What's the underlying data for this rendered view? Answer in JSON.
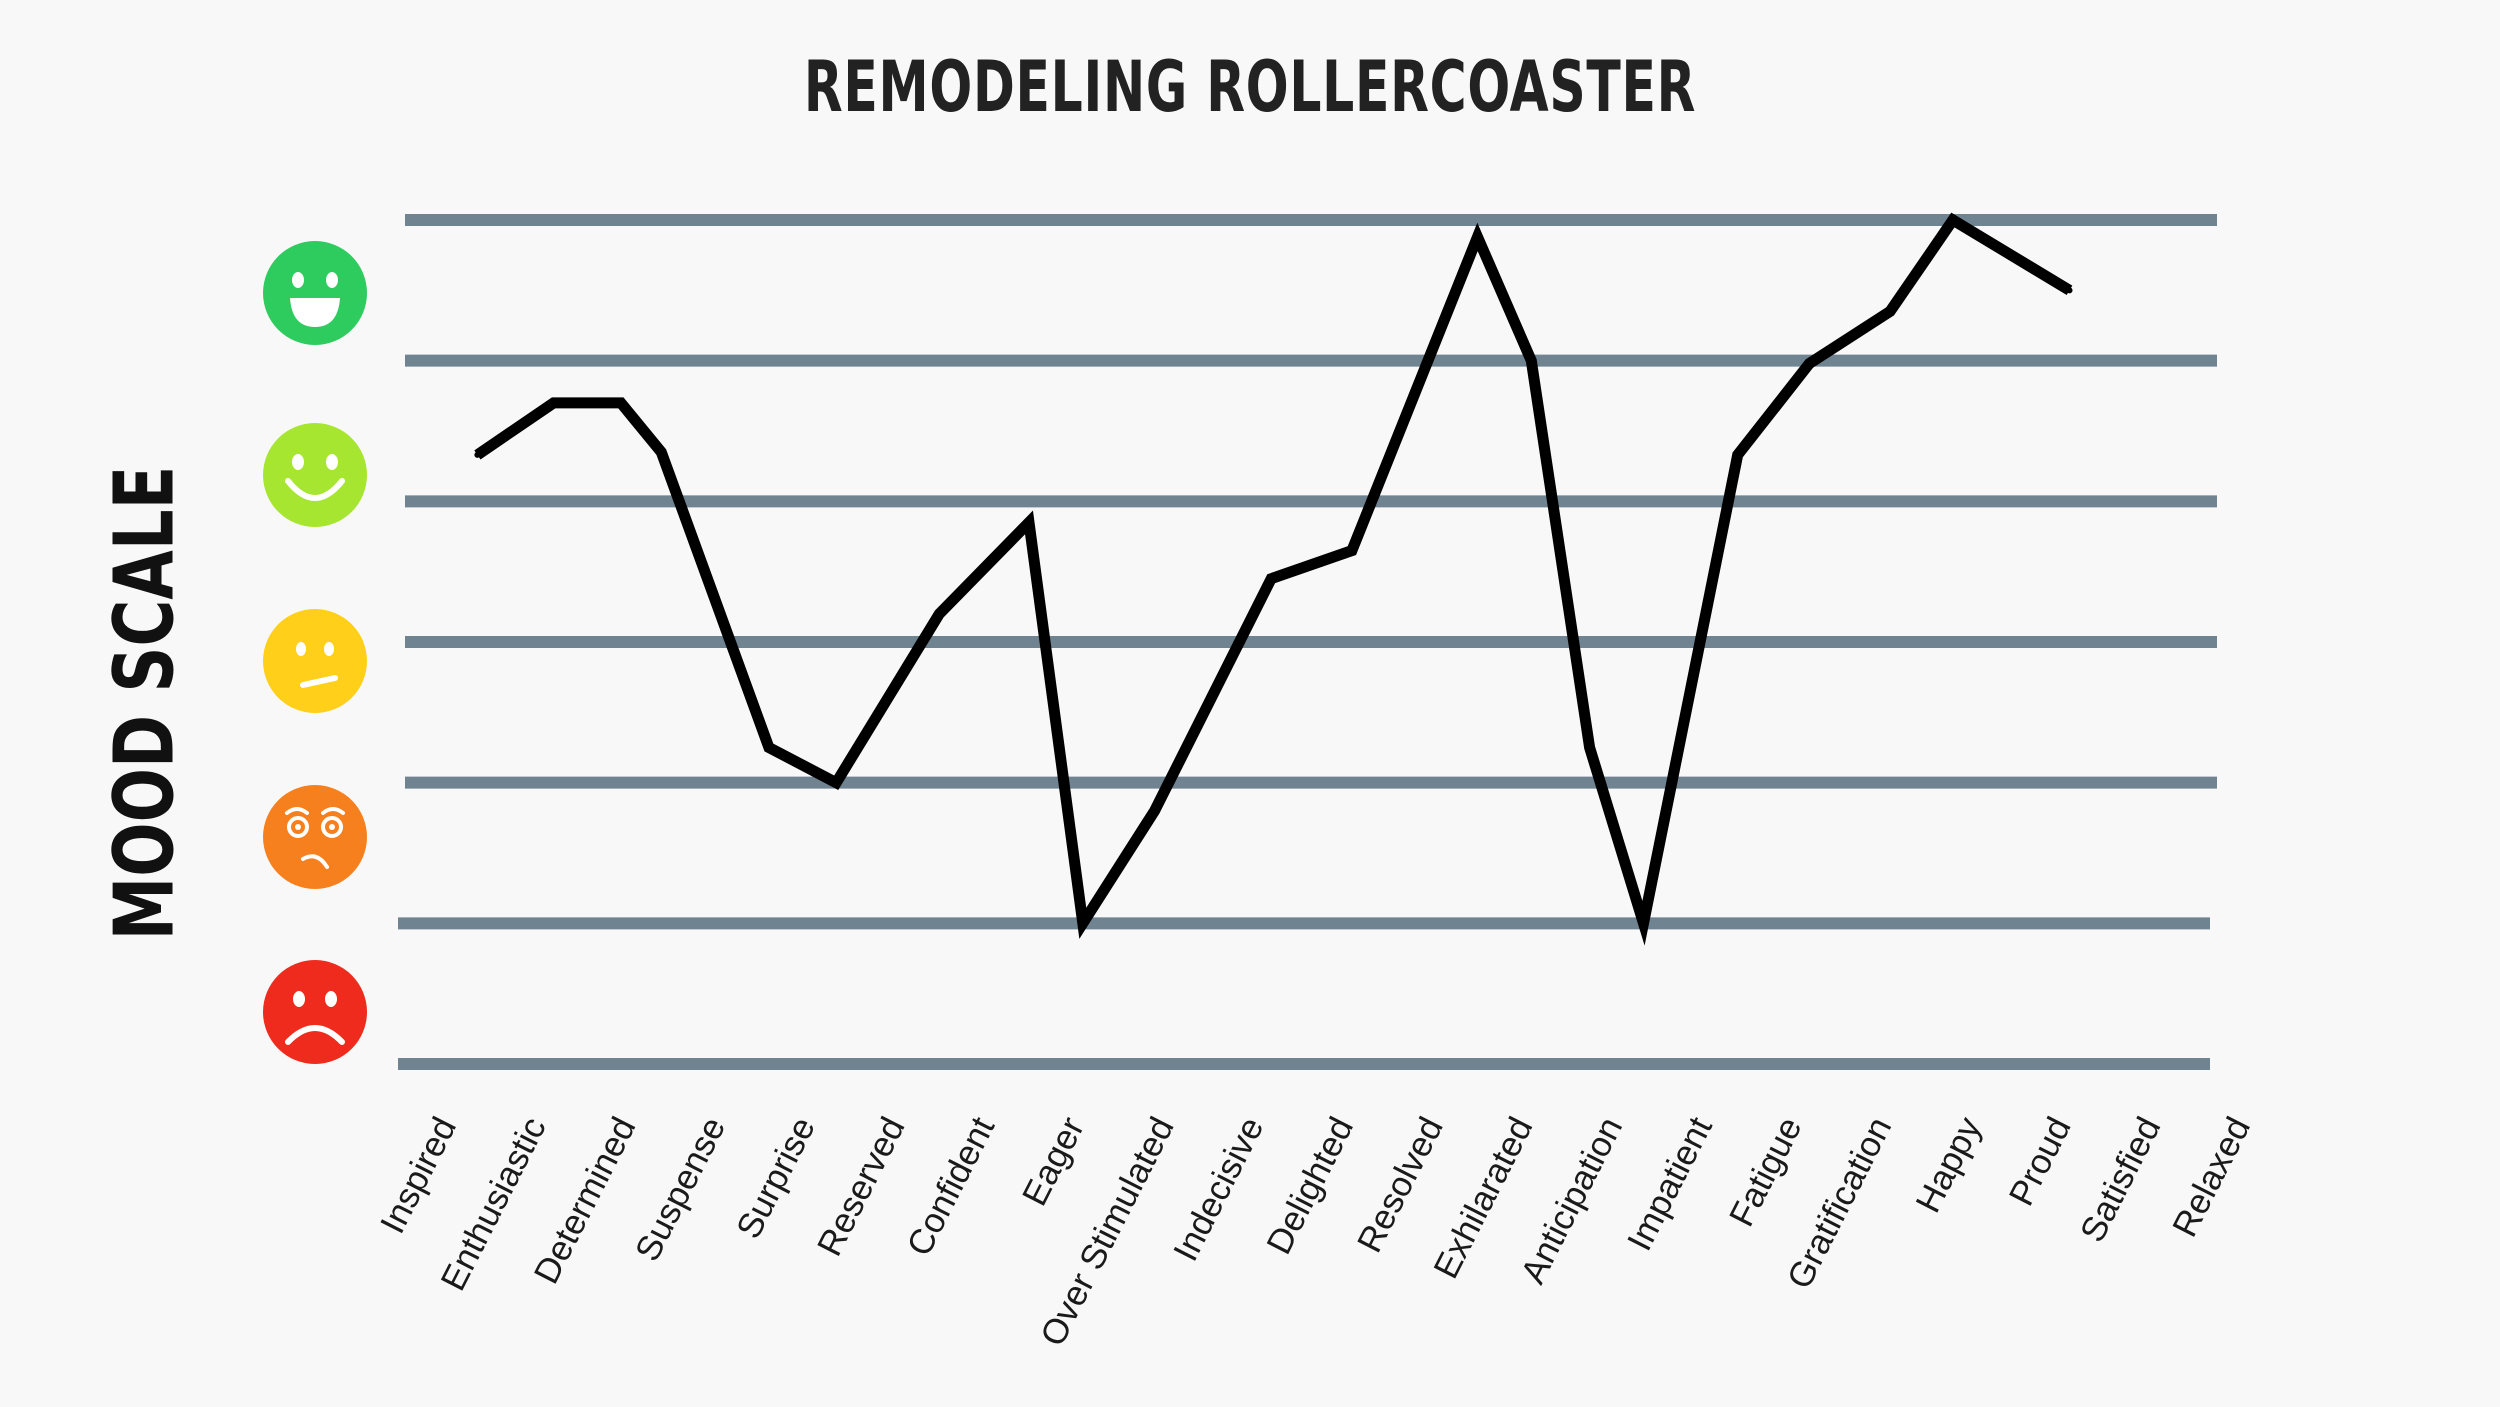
{
  "chart_data": {
    "type": "line",
    "title": "REMODELING ROLLERCOASTER",
    "ylabel": "MOOD SCALE",
    "xlabel": "",
    "categories": [
      "Inspired",
      "Enthusiastic",
      "Determined",
      "Suspense",
      "Surprise",
      "Reserved",
      "Confident",
      "Eager",
      "Over Stimulated",
      "Indecisive",
      "Delighted",
      "Resolved",
      "Exhilarated",
      "Anticipation",
      "Impatient",
      "Fatigue",
      "Gratification",
      "Happy",
      "Proud",
      "Satisfied",
      "Relaxed"
    ],
    "x": [
      0.45,
      1.3,
      2.05,
      2.5,
      3.7,
      4.45,
      5.6,
      6.6,
      7.2,
      8.0,
      9.3,
      10.2,
      11.6,
      12.2,
      12.85,
      13.45,
      14.5,
      15.3,
      16.2,
      16.9,
      18.2
    ],
    "values": [
      4.33,
      4.7,
      4.7,
      4.35,
      2.25,
      2.0,
      3.2,
      3.85,
      1.0,
      1.8,
      3.45,
      3.65,
      5.88,
      5.0,
      2.25,
      1.0,
      4.33,
      4.98,
      5.35,
      6.0,
      5.5
    ],
    "ylim": [
      0,
      6
    ],
    "grid": true,
    "mood_icons": [
      "very-happy-face-icon",
      "happy-face-icon",
      "neutral-face-icon",
      "worried-face-icon",
      "sad-face-icon"
    ],
    "colors": {
      "line": "#000000",
      "grid": "#6f8391",
      "very_happy": "#2ecc5e",
      "happy": "#a6e630",
      "neutral": "#ffcf1a",
      "worried": "#f7801e",
      "sad": "#ee2b1c"
    }
  }
}
